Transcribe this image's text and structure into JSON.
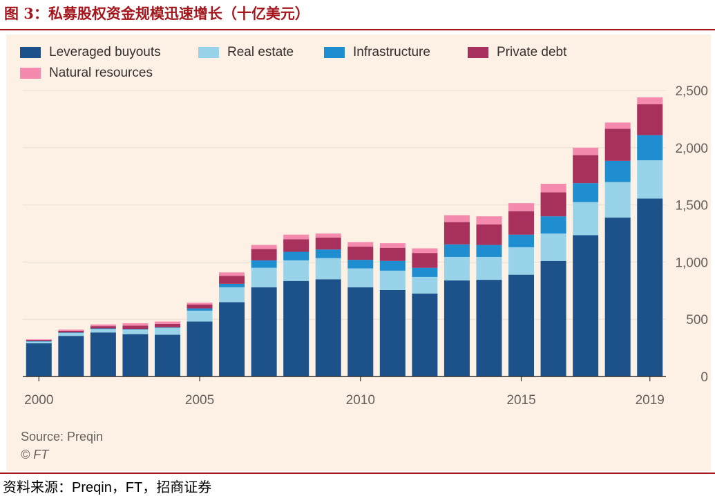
{
  "figure": {
    "title": "图 3：私募股权资金规模迅速增长（十亿美元）",
    "source_note": "Source: Preqin",
    "copyright": "© FT",
    "footer_prefix": "资料来源：",
    "footer_latin": "Preqin，FT，",
    "footer_suffix": "招商证券"
  },
  "colors": {
    "title_red": "#a4151c",
    "panel_bg": "#fdf1e5",
    "gridline": "#e9ddd0",
    "leveraged_buyouts": "#1d5189",
    "real_estate": "#99d3ea",
    "infrastructure": "#1f8ed0",
    "private_debt": "#a7305d",
    "natural_resources": "#f58aaf"
  },
  "chart_data": {
    "type": "bar",
    "stacked": true,
    "title": "",
    "xlabel": "",
    "ylabel": "",
    "ylim": [
      0,
      2500
    ],
    "x_tick_labels": [
      "2000",
      "2005",
      "2010",
      "2015",
      "2019"
    ],
    "y_ticks": [
      0,
      500,
      1000,
      1500,
      2000,
      2500
    ],
    "y_tick_labels": [
      "0",
      "500",
      "1,000",
      "1,500",
      "2,000",
      "2,500"
    ],
    "y_axis_position": "right",
    "legend_position": "top-left",
    "categories": [
      "2000",
      "2001",
      "2002",
      "2003",
      "2004",
      "2005",
      "2006",
      "2007",
      "2008",
      "2009",
      "2010",
      "2011",
      "2012",
      "2013",
      "2014",
      "2015",
      "2016",
      "2017",
      "2018",
      "2019"
    ],
    "series": [
      {
        "name": "Leveraged buyouts",
        "color_key": "leveraged_buyouts",
        "values": [
          290,
          355,
          385,
          370,
          365,
          480,
          650,
          780,
          835,
          850,
          780,
          755,
          725,
          840,
          845,
          890,
          1010,
          1235,
          1390,
          1555
        ]
      },
      {
        "name": "Real estate",
        "color_key": "real_estate",
        "values": [
          15,
          25,
          30,
          40,
          60,
          95,
          130,
          170,
          180,
          185,
          165,
          170,
          145,
          205,
          200,
          240,
          240,
          290,
          310,
          335
        ]
      },
      {
        "name": "Infrastructure",
        "color_key": "infrastructure",
        "values": [
          5,
          5,
          5,
          5,
          5,
          20,
          30,
          65,
          75,
          75,
          75,
          85,
          80,
          110,
          105,
          110,
          150,
          165,
          185,
          220
        ]
      },
      {
        "name": "Private debt",
        "color_key": "private_debt",
        "values": [
          10,
          15,
          20,
          30,
          30,
          35,
          70,
          100,
          110,
          105,
          115,
          115,
          130,
          195,
          180,
          205,
          210,
          245,
          280,
          270
        ]
      },
      {
        "name": "Natural resources",
        "color_key": "natural_resources",
        "values": [
          5,
          10,
          15,
          20,
          20,
          15,
          30,
          35,
          40,
          35,
          40,
          40,
          40,
          60,
          70,
          70,
          75,
          65,
          55,
          60
        ]
      }
    ]
  }
}
